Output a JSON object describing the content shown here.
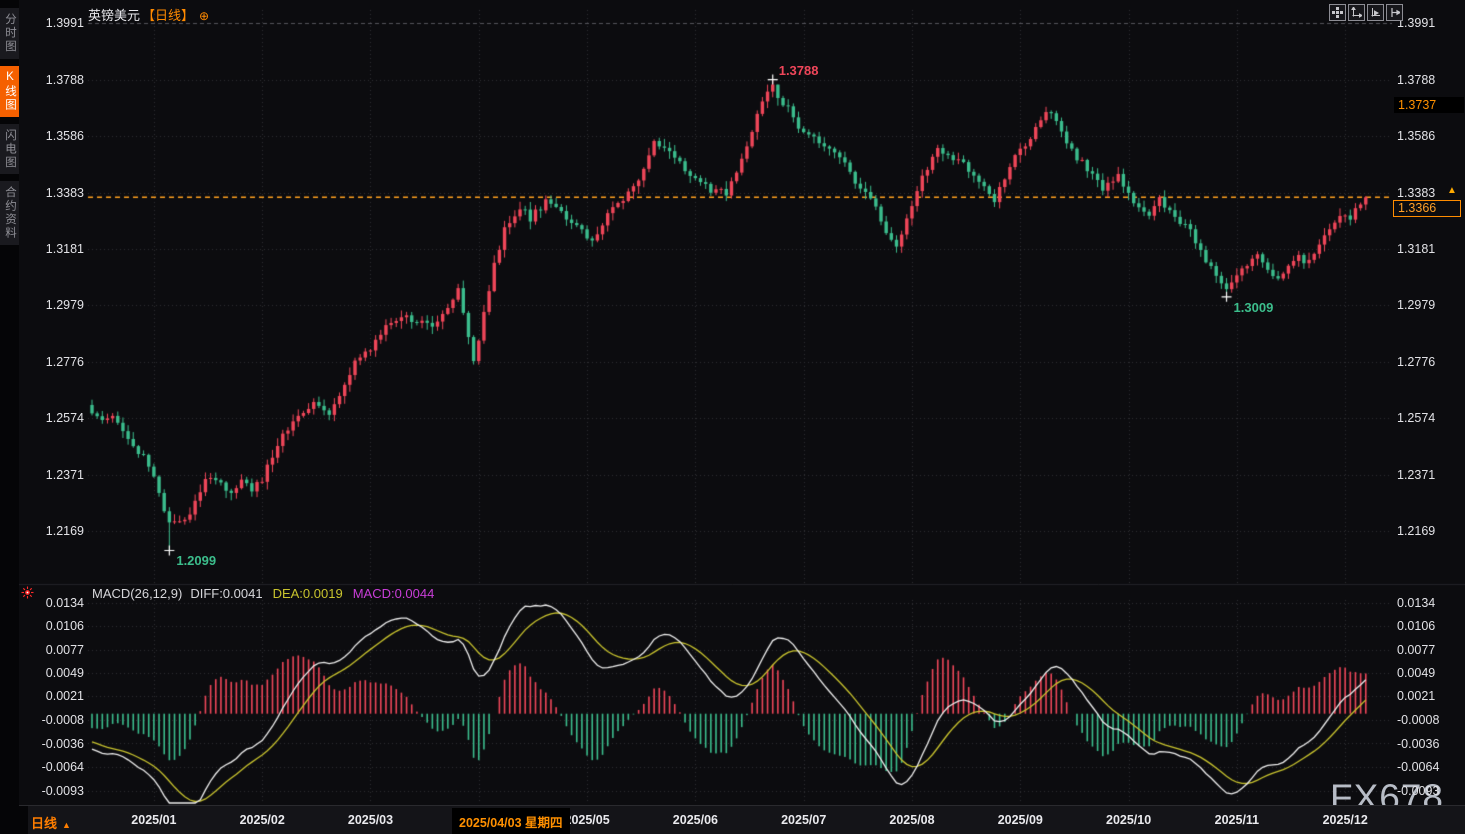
{
  "window": {
    "watermark": "FX678"
  },
  "sidebar": {
    "tabs": [
      {
        "label": "分时图",
        "active": false
      },
      {
        "label": "K线图",
        "active": true
      },
      {
        "label": "闪电图",
        "active": false
      },
      {
        "label": "合约资料",
        "active": false
      }
    ]
  },
  "header": {
    "symbol": "英镑美元",
    "period": "【日线】",
    "add_icon": "⊕"
  },
  "toolbar": {
    "icons": [
      "move-crosshair-icon",
      "scale-both-axes-icon",
      "scale-price-axis-icon",
      "pan-right-icon"
    ]
  },
  "price_axis": {
    "ticks": [
      "1.3991",
      "1.3788",
      "1.3586",
      "1.3383",
      "1.3181",
      "1.2979",
      "1.2776",
      "1.2574",
      "1.2371",
      "1.2169"
    ],
    "upper_marker": "1.3737",
    "current_price": "1.3366",
    "tick_arrow": "▲"
  },
  "macd_panel": {
    "title": "MACD(26,12,9)",
    "diff": "DIFF:0.0041",
    "dea": "DEA:0.0019",
    "macd": "MACD:0.0044",
    "ticks": [
      "0.0134",
      "0.0106",
      "0.0077",
      "0.0049",
      "0.0021",
      "-0.0008",
      "-0.0036",
      "-0.0064",
      "-0.0093"
    ]
  },
  "time_axis": {
    "period": "日线",
    "arrow": "▲",
    "months": [
      "2025/01",
      "2025/02",
      "2025/03",
      "2025/04",
      "2025/05",
      "2025/06",
      "2025/07",
      "2025/08",
      "2025/09",
      "2025/10",
      "2025/11",
      "2025/12"
    ],
    "selected_date": "2025/04/03 星期四"
  },
  "annotations": {
    "high": "1.3788",
    "low": "1.2099",
    "swing_low": "1.3009"
  },
  "colors": {
    "background": "#0c0c0f",
    "up_candle": "#ef4659",
    "down_candle": "#3bbd8d",
    "grid": "#2e2e34",
    "top_grid": "#55555c",
    "current_price_line": "#ffa01e",
    "accent_orange": "#ff8a00",
    "active_tab": "#f56000",
    "diff_line": "#f0f0f0",
    "dea_line": "#c9c42e",
    "macd_label": "#c93ed8",
    "annotation_red": "#f0465a",
    "annotation_green": "#3cbe8c",
    "cross_marker": "#ffffff"
  },
  "chart_data": {
    "type": "candlestick+macd",
    "symbol": "英镑美元 (GBP/USD)",
    "period": "daily",
    "num_days": 248,
    "month_start_days": [
      12,
      33,
      54,
      75,
      96,
      117,
      138,
      159,
      180,
      201,
      222,
      243
    ],
    "price_ticks": [
      1.3991,
      1.3788,
      1.3586,
      1.3383,
      1.3181,
      1.2979,
      1.2776,
      1.2574,
      1.2371,
      1.2169
    ],
    "macd_ticks": [
      0.0134,
      0.0106,
      0.0077,
      0.0049,
      0.0021,
      -0.0008,
      -0.0036,
      -0.0064,
      -0.0093
    ],
    "close_anchors": [
      [
        0,
        1.26
      ],
      [
        2,
        1.256
      ],
      [
        4,
        1.259
      ],
      [
        6,
        1.254
      ],
      [
        8,
        1.248
      ],
      [
        10,
        1.243
      ],
      [
        12,
        1.237
      ],
      [
        14,
        1.225
      ],
      [
        15,
        1.219
      ],
      [
        17,
        1.221
      ],
      [
        19,
        1.223
      ],
      [
        21,
        1.232
      ],
      [
        23,
        1.237
      ],
      [
        25,
        1.233
      ],
      [
        27,
        1.23
      ],
      [
        29,
        1.236
      ],
      [
        31,
        1.232
      ],
      [
        33,
        1.235
      ],
      [
        35,
        1.244
      ],
      [
        37,
        1.252
      ],
      [
        39,
        1.256
      ],
      [
        41,
        1.26
      ],
      [
        43,
        1.262
      ],
      [
        45,
        1.26
      ],
      [
        46,
        1.259
      ],
      [
        48,
        1.266
      ],
      [
        51,
        1.278
      ],
      [
        54,
        1.282
      ],
      [
        57,
        1.29
      ],
      [
        60,
        1.294
      ],
      [
        63,
        1.292
      ],
      [
        66,
        1.291
      ],
      [
        69,
        1.297
      ],
      [
        71,
        1.304
      ],
      [
        73,
        1.286
      ],
      [
        74,
        1.277
      ],
      [
        76,
        1.295
      ],
      [
        78,
        1.312
      ],
      [
        80,
        1.325
      ],
      [
        83,
        1.333
      ],
      [
        85,
        1.329
      ],
      [
        88,
        1.335
      ],
      [
        91,
        1.331
      ],
      [
        94,
        1.326
      ],
      [
        97,
        1.321
      ],
      [
        100,
        1.33
      ],
      [
        103,
        1.336
      ],
      [
        106,
        1.343
      ],
      [
        109,
        1.356
      ],
      [
        112,
        1.353
      ],
      [
        116,
        1.345
      ],
      [
        120,
        1.339
      ],
      [
        123,
        1.338
      ],
      [
        125,
        1.345
      ],
      [
        127,
        1.356
      ],
      [
        129,
        1.366
      ],
      [
        131,
        1.374
      ],
      [
        132,
        1.376
      ],
      [
        133,
        1.372
      ],
      [
        135,
        1.368
      ],
      [
        137,
        1.362
      ],
      [
        140,
        1.358
      ],
      [
        143,
        1.355
      ],
      [
        146,
        1.348
      ],
      [
        149,
        1.34
      ],
      [
        152,
        1.333
      ],
      [
        154,
        1.324
      ],
      [
        156,
        1.318
      ],
      [
        158,
        1.33
      ],
      [
        161,
        1.344
      ],
      [
        164,
        1.353
      ],
      [
        167,
        1.35
      ],
      [
        169,
        1.348
      ],
      [
        172,
        1.343
      ],
      [
        175,
        1.336
      ],
      [
        178,
        1.348
      ],
      [
        181,
        1.356
      ],
      [
        184,
        1.364
      ],
      [
        186,
        1.368
      ],
      [
        188,
        1.36
      ],
      [
        190,
        1.353
      ],
      [
        193,
        1.347
      ],
      [
        196,
        1.34
      ],
      [
        199,
        1.344
      ],
      [
        202,
        1.335
      ],
      [
        205,
        1.329
      ],
      [
        207,
        1.336
      ],
      [
        210,
        1.33
      ],
      [
        213,
        1.324
      ],
      [
        216,
        1.314
      ],
      [
        218,
        1.308
      ],
      [
        220,
        1.304
      ],
      [
        222,
        1.308
      ],
      [
        224,
        1.313
      ],
      [
        226,
        1.315
      ],
      [
        228,
        1.31
      ],
      [
        230,
        1.307
      ],
      [
        232,
        1.311
      ],
      [
        234,
        1.315
      ],
      [
        236,
        1.313
      ],
      [
        238,
        1.32
      ],
      [
        240,
        1.326
      ],
      [
        242,
        1.331
      ],
      [
        244,
        1.329
      ],
      [
        246,
        1.334
      ],
      [
        247,
        1.3366
      ]
    ],
    "extremes": {
      "high": {
        "day": 132,
        "price": 1.3788
      },
      "low": {
        "day": 15,
        "price": 1.2099
      },
      "swing_low": {
        "day": 220,
        "price": 1.3009
      }
    },
    "last": {
      "close": 1.3366,
      "upper_marker": 1.3737
    },
    "macd_last": {
      "diff": 0.0041,
      "dea": 0.0019,
      "macd": 0.0044
    }
  }
}
